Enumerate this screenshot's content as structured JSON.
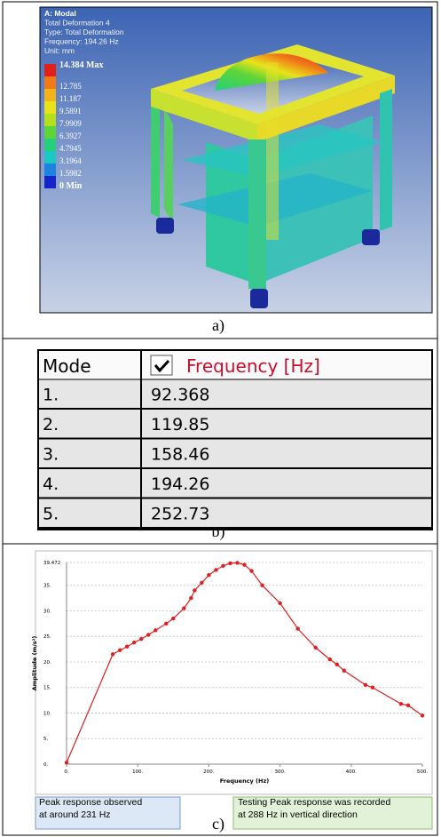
{
  "panel_a": {
    "header": [
      "A: Modal",
      "Total Deformation 4",
      "Type: Total Deformation",
      "Frequency: 194.26 Hz",
      "Unit: mm"
    ],
    "legend": [
      {
        "label": "14.384 Max",
        "color": "#e0201b"
      },
      {
        "label": "12.785",
        "color": "#f07a18"
      },
      {
        "label": "11.187",
        "color": "#f2b418"
      },
      {
        "label": "9.5891",
        "color": "#e8e419"
      },
      {
        "label": "7.9909",
        "color": "#b4e01c"
      },
      {
        "label": "6.3927",
        "color": "#5cd43a"
      },
      {
        "label": "4.7945",
        "color": "#24d07a"
      },
      {
        "label": "3.1964",
        "color": "#1cc8c4"
      },
      {
        "label": "1.5982",
        "color": "#1c84e0"
      },
      {
        "label": "0 Min",
        "color": "#1424c8"
      }
    ],
    "caption": "a)"
  },
  "table": {
    "header": [
      "Mode",
      "Frequency [Hz]"
    ],
    "rows": [
      [
        "1.",
        "92.368"
      ],
      [
        "2.",
        "119.85"
      ],
      [
        "3.",
        "158.46"
      ],
      [
        "4.",
        "194.26"
      ],
      [
        "5.",
        "252.73"
      ]
    ],
    "caption": "b)"
  },
  "chart_data": {
    "type": "line",
    "xlabel": "Frequency (Hz)",
    "ylabel": "Amplitude (m/s²)",
    "color": "#e02020",
    "grid": true,
    "x": [
      0,
      65,
      75,
      85,
      95,
      105,
      115,
      125,
      140,
      150,
      165,
      175,
      180,
      190,
      200,
      210,
      220,
      230,
      240,
      250,
      260,
      275,
      300,
      325,
      350,
      370,
      380,
      390,
      420,
      430,
      470,
      480,
      500
    ],
    "values": [
      0.3,
      21.5,
      22.3,
      23,
      23.8,
      24.5,
      25.3,
      26.2,
      27.5,
      28.5,
      30.5,
      32.5,
      34,
      35.5,
      37,
      38,
      38.8,
      39.3,
      39.4,
      39,
      37.8,
      35,
      31.5,
      26.5,
      22.8,
      20.5,
      19.5,
      18.3,
      15.5,
      15,
      11.8,
      11.5,
      9.5
    ],
    "xlim": [
      0,
      500
    ],
    "ylim": [
      0,
      39.472
    ],
    "xticks": [
      {
        "value": 0,
        "label": "0."
      },
      {
        "value": 100,
        "label": "100."
      },
      {
        "value": 200,
        "label": "200."
      },
      {
        "value": 300,
        "label": "300."
      },
      {
        "value": 400,
        "label": "400."
      },
      {
        "value": 500,
        "label": "500."
      }
    ],
    "yticks": [
      {
        "value": 0,
        "label": "0."
      },
      {
        "value": 5,
        "label": "5."
      },
      {
        "value": 10,
        "label": "10."
      },
      {
        "value": 15,
        "label": "15."
      },
      {
        "value": 20,
        "label": "20."
      },
      {
        "value": 25,
        "label": "25."
      },
      {
        "value": 30,
        "label": "30."
      },
      {
        "value": 35,
        "label": "35."
      },
      39.472
    ],
    "annotations": [
      "Peak response observed at around 231 Hz",
      "Testing Peak response was recorded at 288 Hz in vertical direction"
    ]
  },
  "caption_c": "c)"
}
